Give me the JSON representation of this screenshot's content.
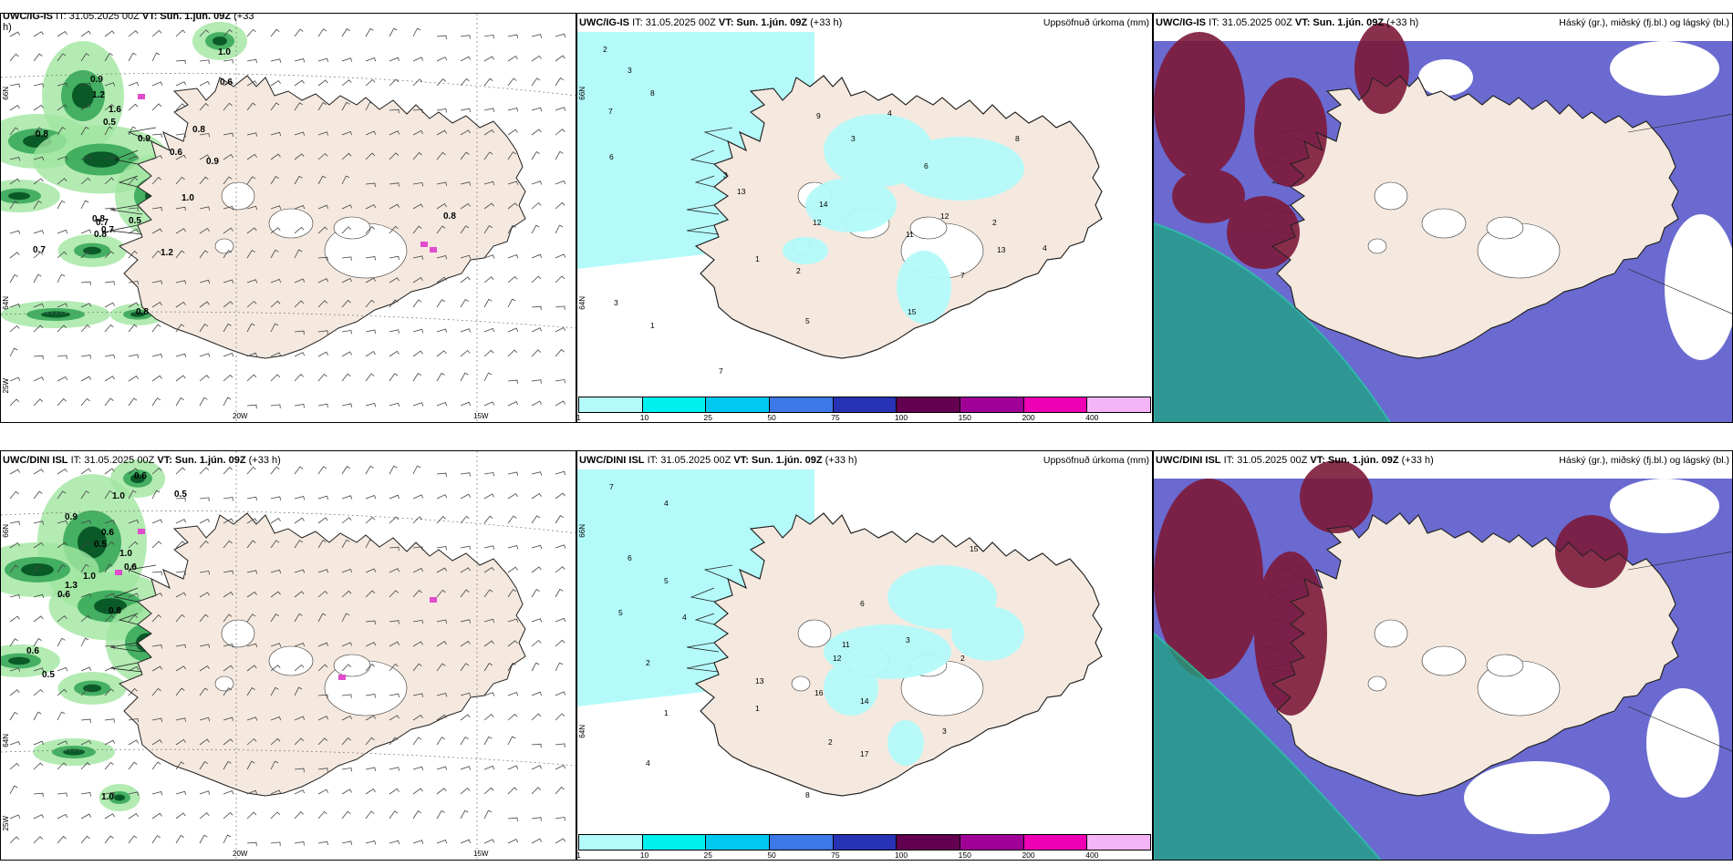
{
  "panels": [
    {
      "id": "p1",
      "title_model": "UWC/IG-IS",
      "title_it": "IT: 31.05.2025 00Z",
      "title_vt": "VT: Sun. 1.jún. 09Z",
      "title_lead": "(+33",
      "title_lead_wrap": "h)",
      "right_title": ""
    },
    {
      "id": "p2",
      "title_model": "UWC/IG-IS",
      "title_it": "IT: 31.05.2025 00Z",
      "title_vt": "VT: Sun. 1.jún. 09Z",
      "title_lead": "(+33 h)",
      "right_title": "Uppsöfnuð úrkoma (mm)"
    },
    {
      "id": "p3",
      "title_model": "UWC/IG-IS",
      "title_it": "IT: 31.05.2025 00Z",
      "title_vt": "VT: Sun. 1.jún. 09Z",
      "title_lead": "(+33 h)",
      "right_title": "Háský (gr.), miðský (fj.bl.) og lágský (bl.)"
    },
    {
      "id": "p4",
      "title_model": "UWC/DINI ISL",
      "title_it": "IT: 31.05.2025 00Z",
      "title_vt": "VT: Sun. 1.jún. 09Z",
      "title_lead": "(+33 h)",
      "right_title": ""
    },
    {
      "id": "p5",
      "title_model": "UWC/DINI ISL",
      "title_it": "IT: 31.05.2025 00Z",
      "title_vt": "VT: Sun. 1.jún. 09Z",
      "title_lead": "(+33 h)",
      "right_title": "Uppsöfnuð úrkoma (mm)"
    },
    {
      "id": "p6",
      "title_model": "UWC/DINI ISL",
      "title_it": "IT: 31.05.2025 00Z",
      "title_vt": "VT: Sun. 1.jún. 09Z",
      "title_lead": "(+33 h)",
      "right_title": "Háský (gr.), miðský (fj.bl.) og lágský (bl.)"
    }
  ],
  "axis": {
    "lon_20": "20W",
    "lon_15": "15W",
    "lat_66": "66N",
    "lat_64": "64N",
    "lon_25": "25W"
  },
  "colorbar": {
    "labels": [
      "1",
      "10",
      "25",
      "50",
      "75",
      "100",
      "150",
      "200",
      "400"
    ],
    "colors": [
      "#b4fafa",
      "#00f0f0",
      "#00c8f0",
      "#3c78e6",
      "#2832b4",
      "#640050",
      "#a00096",
      "#f000b4",
      "#f5b4f5"
    ]
  },
  "colors": {
    "land": "#f5e9df",
    "land_cloud1": "#f3e6da",
    "precip_light": "#b4fafa",
    "cloud_high": "#7d1a3a",
    "cloud_mid": "#5050c8",
    "cloud_low": "#3c8cf0",
    "green_dark": "#0a5a28",
    "green_light": "#a0e6a0"
  },
  "precip_labels_top": [
    "2",
    "3",
    "8",
    "7",
    "6",
    "3",
    "13",
    "12",
    "5",
    "14",
    "9",
    "11",
    "12",
    "15",
    "7",
    "13",
    "8",
    "6",
    "4",
    "3",
    "2",
    "1",
    "1",
    "2",
    "3",
    "5",
    "7",
    "4"
  ],
  "precip_labels_bottom": [
    "7",
    "4",
    "6",
    "5",
    "5",
    "4",
    "2",
    "13",
    "16",
    "14",
    "11",
    "12",
    "15",
    "6",
    "3",
    "2",
    "1",
    "1",
    "2",
    "17",
    "8",
    "3",
    "4"
  ],
  "wind_values_top": [
    "1.0",
    "0.6",
    "0.9",
    "1.2",
    "1.6",
    "0.5",
    "0.8",
    "0.9",
    "0.6",
    "0.8",
    "0.9",
    "1.0",
    "0.8",
    "0.7",
    "0.5",
    "1.2",
    "0.7",
    "0.8",
    "0.8",
    "0.7",
    "0.8"
  ],
  "wind_values_bottom": [
    "0.6",
    "1.0",
    "0.9",
    "0.6",
    "1.3",
    "0.5",
    "1.0",
    "0.8",
    "0.6",
    "1.0",
    "0.6",
    "0.5",
    "0.6",
    "0.5",
    "1.0"
  ]
}
